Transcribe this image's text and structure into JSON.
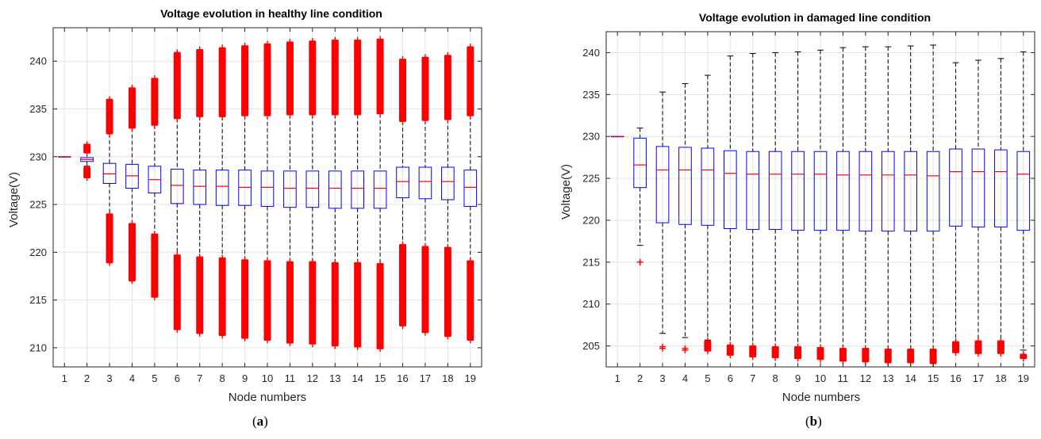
{
  "figure": {
    "captions": [
      {
        "open": "(",
        "letter": "a",
        "close": ")"
      },
      {
        "open": "(",
        "letter": "b",
        "close": ")"
      }
    ]
  },
  "chart_data": [
    {
      "type": "box",
      "title": "Voltage evolution in healthy line condition",
      "xlabel": "Node numbers",
      "ylabel": "Voltage(V)",
      "ylim": [
        208,
        243.5
      ],
      "yticks": [
        210,
        215,
        220,
        225,
        230,
        235,
        240
      ],
      "grid": true,
      "colors": {
        "box": "#0000ff",
        "median": "#ff0000",
        "whisker": "#000000",
        "outlier": "#ff0000"
      },
      "categories": [
        "1",
        "2",
        "3",
        "4",
        "5",
        "6",
        "7",
        "8",
        "9",
        "10",
        "11",
        "12",
        "13",
        "14",
        "15",
        "16",
        "17",
        "18",
        "19"
      ],
      "boxes": [
        {
          "q1": 230.0,
          "median": 230.0,
          "q3": 230.0,
          "whisker_low": 230.0,
          "whisker_high": 230.0,
          "out_low": [],
          "out_high": []
        },
        {
          "q1": 229.5,
          "median": 229.7,
          "q3": 229.9,
          "whisker_low": 229.0,
          "whisker_high": 230.4,
          "out_low": [
            227.8,
            228.9
          ],
          "out_high": [
            230.4,
            231.3
          ]
        },
        {
          "q1": 227.2,
          "median": 228.2,
          "q3": 229.3,
          "whisker_low": 224.0,
          "whisker_high": 232.4,
          "out_low": [
            218.9,
            224.0
          ],
          "out_high": [
            232.4,
            236.0
          ]
        },
        {
          "q1": 226.7,
          "median": 228.0,
          "q3": 229.2,
          "whisker_low": 223.0,
          "whisker_high": 233.0,
          "out_low": [
            217.0,
            223.0
          ],
          "out_high": [
            233.0,
            237.2
          ]
        },
        {
          "q1": 226.2,
          "median": 227.6,
          "q3": 229.0,
          "whisker_low": 221.9,
          "whisker_high": 233.3,
          "out_low": [
            215.3,
            221.9
          ],
          "out_high": [
            233.3,
            238.2
          ]
        },
        {
          "q1": 225.1,
          "median": 227.0,
          "q3": 228.7,
          "whisker_low": 219.7,
          "whisker_high": 234.0,
          "out_low": [
            211.9,
            219.7
          ],
          "out_high": [
            234.0,
            240.9
          ]
        },
        {
          "q1": 225.0,
          "median": 226.9,
          "q3": 228.6,
          "whisker_low": 219.5,
          "whisker_high": 234.2,
          "out_low": [
            211.5,
            219.5
          ],
          "out_high": [
            234.2,
            241.2
          ]
        },
        {
          "q1": 224.9,
          "median": 226.9,
          "q3": 228.6,
          "whisker_low": 219.4,
          "whisker_high": 234.2,
          "out_low": [
            211.3,
            219.4
          ],
          "out_high": [
            234.2,
            241.4
          ]
        },
        {
          "q1": 224.9,
          "median": 226.8,
          "q3": 228.6,
          "whisker_low": 219.2,
          "whisker_high": 234.3,
          "out_low": [
            211.0,
            219.2
          ],
          "out_high": [
            234.3,
            241.6
          ]
        },
        {
          "q1": 224.8,
          "median": 226.8,
          "q3": 228.5,
          "whisker_low": 219.1,
          "whisker_high": 234.3,
          "out_low": [
            210.8,
            219.1
          ],
          "out_high": [
            234.3,
            241.8
          ]
        },
        {
          "q1": 224.7,
          "median": 226.7,
          "q3": 228.5,
          "whisker_low": 219.0,
          "whisker_high": 234.4,
          "out_low": [
            210.5,
            219.0
          ],
          "out_high": [
            234.4,
            242.0
          ]
        },
        {
          "q1": 224.7,
          "median": 226.7,
          "q3": 228.5,
          "whisker_low": 219.0,
          "whisker_high": 234.4,
          "out_low": [
            210.4,
            219.0
          ],
          "out_high": [
            234.4,
            242.1
          ]
        },
        {
          "q1": 224.6,
          "median": 226.7,
          "q3": 228.5,
          "whisker_low": 218.9,
          "whisker_high": 234.4,
          "out_low": [
            210.2,
            218.9
          ],
          "out_high": [
            234.4,
            242.2
          ]
        },
        {
          "q1": 224.6,
          "median": 226.7,
          "q3": 228.5,
          "whisker_low": 218.9,
          "whisker_high": 234.4,
          "out_low": [
            210.1,
            218.9
          ],
          "out_high": [
            234.4,
            242.2
          ]
        },
        {
          "q1": 224.6,
          "median": 226.7,
          "q3": 228.5,
          "whisker_low": 218.8,
          "whisker_high": 234.5,
          "out_low": [
            209.9,
            218.8
          ],
          "out_high": [
            234.5,
            242.3
          ]
        },
        {
          "q1": 225.7,
          "median": 227.4,
          "q3": 228.9,
          "whisker_low": 220.8,
          "whisker_high": 233.7,
          "out_low": [
            212.3,
            220.8
          ],
          "out_high": [
            233.7,
            240.2
          ]
        },
        {
          "q1": 225.6,
          "median": 227.4,
          "q3": 228.9,
          "whisker_low": 220.6,
          "whisker_high": 233.8,
          "out_low": [
            211.6,
            220.6
          ],
          "out_high": [
            233.8,
            240.4
          ]
        },
        {
          "q1": 225.5,
          "median": 227.4,
          "q3": 228.9,
          "whisker_low": 220.5,
          "whisker_high": 233.9,
          "out_low": [
            211.2,
            220.5
          ],
          "out_high": [
            233.9,
            240.6
          ]
        },
        {
          "q1": 224.8,
          "median": 226.8,
          "q3": 228.6,
          "whisker_low": 219.1,
          "whisker_high": 234.3,
          "out_low": [
            210.8,
            219.1
          ],
          "out_high": [
            234.3,
            241.5
          ]
        }
      ]
    },
    {
      "type": "box",
      "title": "Voltage evolution in damaged line condition",
      "xlabel": "Node numbers",
      "ylabel": "Voltage(V)",
      "ylim": [
        202.5,
        242.5
      ],
      "yticks": [
        205,
        210,
        215,
        220,
        225,
        230,
        235,
        240
      ],
      "grid": true,
      "colors": {
        "box": "#0000ff",
        "median": "#ff0000",
        "whisker": "#000000",
        "outlier": "#ff0000"
      },
      "categories": [
        "1",
        "2",
        "3",
        "4",
        "5",
        "6",
        "7",
        "8",
        "9",
        "10",
        "11",
        "12",
        "13",
        "14",
        "15",
        "16",
        "17",
        "18",
        "19"
      ],
      "boxes": [
        {
          "q1": 230.0,
          "median": 230.0,
          "q3": 230.0,
          "whisker_low": 230.0,
          "whisker_high": 230.0,
          "out_low": [],
          "out_high": []
        },
        {
          "q1": 223.9,
          "median": 226.6,
          "q3": 229.8,
          "whisker_low": 217.0,
          "whisker_high": 231.0,
          "out_low": [
            215.0,
            215.0
          ],
          "out_high": []
        },
        {
          "q1": 219.7,
          "median": 226.0,
          "q3": 228.8,
          "whisker_low": 206.5,
          "whisker_high": 235.3,
          "out_low": [
            204.7,
            204.9
          ],
          "out_high": []
        },
        {
          "q1": 219.5,
          "median": 226.0,
          "q3": 228.7,
          "whisker_low": 206.0,
          "whisker_high": 236.3,
          "out_low": [
            204.5,
            204.7
          ],
          "out_high": []
        },
        {
          "q1": 219.4,
          "median": 226.0,
          "q3": 228.6,
          "whisker_low": 205.7,
          "whisker_high": 237.3,
          "out_low": [
            204.4,
            205.6
          ],
          "out_high": []
        },
        {
          "q1": 219.0,
          "median": 225.6,
          "q3": 228.3,
          "whisker_low": 205.1,
          "whisker_high": 239.6,
          "out_low": [
            203.9,
            205.1
          ],
          "out_high": []
        },
        {
          "q1": 218.9,
          "median": 225.5,
          "q3": 228.2,
          "whisker_low": 205.0,
          "whisker_high": 239.9,
          "out_low": [
            203.7,
            205.0
          ],
          "out_high": []
        },
        {
          "q1": 218.9,
          "median": 225.5,
          "q3": 228.2,
          "whisker_low": 204.9,
          "whisker_high": 240.0,
          "out_low": [
            203.6,
            204.9
          ],
          "out_high": []
        },
        {
          "q1": 218.8,
          "median": 225.5,
          "q3": 228.2,
          "whisker_low": 204.9,
          "whisker_high": 240.1,
          "out_low": [
            203.5,
            204.9
          ],
          "out_high": []
        },
        {
          "q1": 218.8,
          "median": 225.5,
          "q3": 228.2,
          "whisker_low": 204.8,
          "whisker_high": 240.3,
          "out_low": [
            203.4,
            204.8
          ],
          "out_high": []
        },
        {
          "q1": 218.8,
          "median": 225.4,
          "q3": 228.2,
          "whisker_low": 204.7,
          "whisker_high": 240.6,
          "out_low": [
            203.2,
            204.7
          ],
          "out_high": []
        },
        {
          "q1": 218.7,
          "median": 225.4,
          "q3": 228.2,
          "whisker_low": 204.7,
          "whisker_high": 240.7,
          "out_low": [
            203.1,
            204.7
          ],
          "out_high": []
        },
        {
          "q1": 218.7,
          "median": 225.4,
          "q3": 228.2,
          "whisker_low": 204.6,
          "whisker_high": 240.7,
          "out_low": [
            203.0,
            204.6
          ],
          "out_high": []
        },
        {
          "q1": 218.7,
          "median": 225.4,
          "q3": 228.2,
          "whisker_low": 204.6,
          "whisker_high": 240.8,
          "out_low": [
            203.0,
            204.6
          ],
          "out_high": []
        },
        {
          "q1": 218.7,
          "median": 225.3,
          "q3": 228.2,
          "whisker_low": 204.6,
          "whisker_high": 240.9,
          "out_low": [
            202.9,
            204.6
          ],
          "out_high": []
        },
        {
          "q1": 219.3,
          "median": 225.8,
          "q3": 228.5,
          "whisker_low": 205.5,
          "whisker_high": 238.8,
          "out_low": [
            204.2,
            205.5
          ],
          "out_high": []
        },
        {
          "q1": 219.2,
          "median": 225.8,
          "q3": 228.5,
          "whisker_low": 205.6,
          "whisker_high": 239.1,
          "out_low": [
            204.1,
            205.6
          ],
          "out_high": []
        },
        {
          "q1": 219.2,
          "median": 225.8,
          "q3": 228.4,
          "whisker_low": 205.6,
          "whisker_high": 239.3,
          "out_low": [
            204.1,
            205.6
          ],
          "out_high": []
        },
        {
          "q1": 218.8,
          "median": 225.5,
          "q3": 228.2,
          "whisker_low": 204.5,
          "whisker_high": 240.1,
          "out_low": [
            203.5,
            204.0
          ],
          "out_high": []
        }
      ]
    }
  ]
}
